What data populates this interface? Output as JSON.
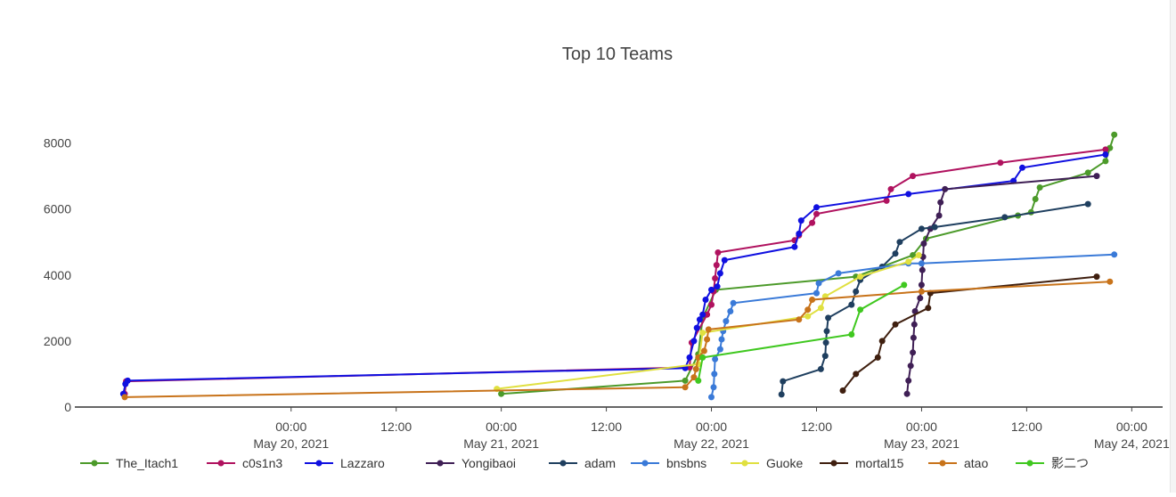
{
  "chart_data": {
    "type": "line",
    "title": "Top 10 Teams",
    "xlabel": "",
    "ylabel": "",
    "x_range": [
      "2021-05-19 05:00",
      "2021-05-24 02:00"
    ],
    "ylim": [
      -300,
      8900
    ],
    "y_ticks": [
      0,
      2000,
      4000,
      6000,
      8000
    ],
    "x_ticks": [
      {
        "t": "2021-05-20 00:00",
        "label": "00:00",
        "date": "May 20, 2021"
      },
      {
        "t": "2021-05-20 12:00",
        "label": "12:00",
        "date": ""
      },
      {
        "t": "2021-05-21 00:00",
        "label": "00:00",
        "date": "May 21, 2021"
      },
      {
        "t": "2021-05-21 12:00",
        "label": "12:00",
        "date": ""
      },
      {
        "t": "2021-05-22 00:00",
        "label": "00:00",
        "date": "May 22, 2021"
      },
      {
        "t": "2021-05-22 12:00",
        "label": "12:00",
        "date": ""
      },
      {
        "t": "2021-05-23 00:00",
        "label": "00:00",
        "date": "May 23, 2021"
      },
      {
        "t": "2021-05-23 12:00",
        "label": "12:00",
        "date": ""
      },
      {
        "t": "2021-05-24 00:00",
        "label": "00:00",
        "date": "May 24, 2021"
      }
    ],
    "grid": false,
    "legend_position": "bottom",
    "series": [
      {
        "name": "The_Itach1",
        "color": "#4c9a2a",
        "points": [
          [
            "2021-05-21 00:00",
            400
          ],
          [
            "2021-05-21 21:00",
            800
          ],
          [
            "2021-05-21 22:30",
            1600
          ],
          [
            "2021-05-21 23:00",
            2700
          ],
          [
            "2021-05-22 00:30",
            3550
          ],
          [
            "2021-05-22 16:30",
            3950
          ],
          [
            "2021-05-22 23:00",
            4600
          ],
          [
            "2021-05-23 00:30",
            5100
          ],
          [
            "2021-05-23 11:00",
            5800
          ],
          [
            "2021-05-23 12:30",
            5900
          ],
          [
            "2021-05-23 13:00",
            6300
          ],
          [
            "2021-05-23 13:30",
            6650
          ],
          [
            "2021-05-23 19:00",
            7100
          ],
          [
            "2021-05-23 21:00",
            7450
          ],
          [
            "2021-05-23 21:30",
            7850
          ],
          [
            "2021-05-23 22:00",
            8250
          ]
        ]
      },
      {
        "name": "c0s1n3",
        "color": "#b0125f",
        "points": [
          [
            "2021-05-19 05:00",
            400
          ],
          [
            "2021-05-19 05:10",
            780
          ],
          [
            "2021-05-21 21:30",
            1200
          ],
          [
            "2021-05-21 21:45",
            1950
          ],
          [
            "2021-05-21 23:30",
            2800
          ],
          [
            "2021-05-22 00:00",
            3100
          ],
          [
            "2021-05-22 00:15",
            3500
          ],
          [
            "2021-05-22 00:25",
            3900
          ],
          [
            "2021-05-22 00:35",
            4300
          ],
          [
            "2021-05-22 00:45",
            4680
          ],
          [
            "2021-05-22 09:30",
            5050
          ],
          [
            "2021-05-22 10:00",
            5200
          ],
          [
            "2021-05-22 11:30",
            5580
          ],
          [
            "2021-05-22 12:00",
            5850
          ],
          [
            "2021-05-22 20:00",
            6250
          ],
          [
            "2021-05-22 20:30",
            6600
          ],
          [
            "2021-05-22 23:00",
            7000
          ],
          [
            "2021-05-23 09:00",
            7400
          ],
          [
            "2021-05-23 21:00",
            7800
          ]
        ]
      },
      {
        "name": "Lazzaro",
        "color": "#1010e0",
        "points": [
          [
            "2021-05-19 04:50",
            400
          ],
          [
            "2021-05-19 05:05",
            700
          ],
          [
            "2021-05-19 05:20",
            800
          ],
          [
            "2021-05-21 21:00",
            1180
          ],
          [
            "2021-05-21 21:30",
            1500
          ],
          [
            "2021-05-21 22:00",
            2000
          ],
          [
            "2021-05-21 22:20",
            2400
          ],
          [
            "2021-05-21 22:40",
            2650
          ],
          [
            "2021-05-21 23:00",
            2800
          ],
          [
            "2021-05-21 23:20",
            3250
          ],
          [
            "2021-05-22 00:00",
            3550
          ],
          [
            "2021-05-22 00:40",
            3650
          ],
          [
            "2021-05-22 01:00",
            4050
          ],
          [
            "2021-05-22 01:30",
            4450
          ],
          [
            "2021-05-22 09:30",
            4850
          ],
          [
            "2021-05-22 10:00",
            5250
          ],
          [
            "2021-05-22 10:15",
            5650
          ],
          [
            "2021-05-22 12:00",
            6050
          ],
          [
            "2021-05-22 22:30",
            6450
          ],
          [
            "2021-05-23 10:30",
            6850
          ],
          [
            "2021-05-23 11:30",
            7250
          ],
          [
            "2021-05-23 21:00",
            7650
          ]
        ]
      },
      {
        "name": "Yongibaoi",
        "color": "#3f1f55",
        "points": [
          [
            "2021-05-22 22:20",
            400
          ],
          [
            "2021-05-22 22:30",
            800
          ],
          [
            "2021-05-22 22:45",
            1250
          ],
          [
            "2021-05-22 23:00",
            1650
          ],
          [
            "2021-05-22 23:05",
            2100
          ],
          [
            "2021-05-22 23:10",
            2500
          ],
          [
            "2021-05-22 23:15",
            2900
          ],
          [
            "2021-05-22 23:50",
            3300
          ],
          [
            "2021-05-23 00:00",
            3700
          ],
          [
            "2021-05-23 00:05",
            4150
          ],
          [
            "2021-05-23 00:10",
            4550
          ],
          [
            "2021-05-23 00:15",
            4950
          ],
          [
            "2021-05-23 01:00",
            5400
          ],
          [
            "2021-05-23 02:00",
            5800
          ],
          [
            "2021-05-23 02:10",
            6200
          ],
          [
            "2021-05-23 02:40",
            6600
          ],
          [
            "2021-05-23 20:00",
            7000
          ]
        ]
      },
      {
        "name": "adam",
        "color": "#1f3f5f",
        "points": [
          [
            "2021-05-22 08:00",
            380
          ],
          [
            "2021-05-22 08:10",
            780
          ],
          [
            "2021-05-22 12:30",
            1150
          ],
          [
            "2021-05-22 13:00",
            1550
          ],
          [
            "2021-05-22 13:05",
            1950
          ],
          [
            "2021-05-22 13:10",
            2300
          ],
          [
            "2021-05-22 13:20",
            2700
          ],
          [
            "2021-05-22 16:00",
            3100
          ],
          [
            "2021-05-22 16:30",
            3500
          ],
          [
            "2021-05-22 17:00",
            3850
          ],
          [
            "2021-05-22 19:30",
            4250
          ],
          [
            "2021-05-22 21:00",
            4650
          ],
          [
            "2021-05-22 21:30",
            5000
          ],
          [
            "2021-05-23 00:00",
            5400
          ],
          [
            "2021-05-23 01:30",
            5450
          ],
          [
            "2021-05-23 09:30",
            5750
          ],
          [
            "2021-05-23 19:00",
            6150
          ]
        ]
      },
      {
        "name": "bnsbns",
        "color": "#3a7ad8",
        "points": [
          [
            "2021-05-22 00:00",
            300
          ],
          [
            "2021-05-22 00:15",
            600
          ],
          [
            "2021-05-22 00:20",
            1000
          ],
          [
            "2021-05-22 00:25",
            1450
          ],
          [
            "2021-05-22 01:00",
            1750
          ],
          [
            "2021-05-22 01:10",
            2050
          ],
          [
            "2021-05-22 01:20",
            2300
          ],
          [
            "2021-05-22 01:40",
            2600
          ],
          [
            "2021-05-22 02:10",
            2900
          ],
          [
            "2021-05-22 02:30",
            3150
          ],
          [
            "2021-05-22 12:00",
            3450
          ],
          [
            "2021-05-22 12:15",
            3750
          ],
          [
            "2021-05-22 14:30",
            4050
          ],
          [
            "2021-05-22 22:30",
            4350
          ],
          [
            "2021-05-23 00:00",
            4350
          ],
          [
            "2021-05-23 22:00",
            4620
          ]
        ]
      },
      {
        "name": "Guoke",
        "color": "#e0e040",
        "points": [
          [
            "2021-05-20 23:30",
            550
          ],
          [
            "2021-05-21 22:30",
            1300
          ],
          [
            "2021-05-21 23:00",
            2250
          ],
          [
            "2021-05-22 11:00",
            2750
          ],
          [
            "2021-05-22 12:30",
            3000
          ],
          [
            "2021-05-22 13:00",
            3350
          ],
          [
            "2021-05-22 17:00",
            3950
          ],
          [
            "2021-05-22 22:30",
            4400
          ],
          [
            "2021-05-22 23:40",
            4600
          ]
        ]
      },
      {
        "name": "mortal15",
        "color": "#3f1f0f",
        "points": [
          [
            "2021-05-22 15:00",
            500
          ],
          [
            "2021-05-22 16:30",
            1000
          ],
          [
            "2021-05-22 19:00",
            1500
          ],
          [
            "2021-05-22 19:30",
            2000
          ],
          [
            "2021-05-22 21:00",
            2500
          ],
          [
            "2021-05-23 00:45",
            3000
          ],
          [
            "2021-05-23 01:00",
            3450
          ],
          [
            "2021-05-23 20:00",
            3950
          ]
        ]
      },
      {
        "name": "atao",
        "color": "#c8731a",
        "points": [
          [
            "2021-05-19 05:00",
            300
          ],
          [
            "2021-05-21 21:00",
            600
          ],
          [
            "2021-05-21 22:00",
            900
          ],
          [
            "2021-05-21 22:15",
            1150
          ],
          [
            "2021-05-21 22:30",
            1500
          ],
          [
            "2021-05-21 23:10",
            1700
          ],
          [
            "2021-05-21 23:30",
            2050
          ],
          [
            "2021-05-21 23:40",
            2350
          ],
          [
            "2021-05-22 10:00",
            2650
          ],
          [
            "2021-05-22 11:00",
            2950
          ],
          [
            "2021-05-22 11:30",
            3250
          ],
          [
            "2021-05-23 00:00",
            3500
          ],
          [
            "2021-05-23 21:30",
            3800
          ]
        ]
      },
      {
        "name": "影二つ",
        "color": "#40c820",
        "points": [
          [
            "2021-05-21 22:30",
            800
          ],
          [
            "2021-05-21 23:00",
            1500
          ],
          [
            "2021-05-22 16:00",
            2200
          ],
          [
            "2021-05-22 17:00",
            2950
          ],
          [
            "2021-05-22 22:00",
            3700
          ]
        ]
      }
    ]
  }
}
